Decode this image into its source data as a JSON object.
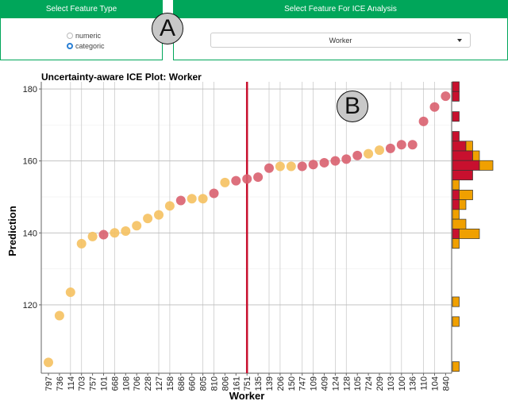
{
  "panels": {
    "feature_type": {
      "title": "Select Feature Type",
      "options": [
        "numeric",
        "categoric"
      ],
      "selected": "categoric"
    },
    "feature_select": {
      "title": "Select Feature For ICE Analysis",
      "value": "Worker"
    }
  },
  "markers": {
    "a": "A",
    "b": "B"
  },
  "colors": {
    "red": "#c8102e",
    "orange": "#f0a000",
    "point_red": "#d9606f",
    "point_orange": "#f5c160",
    "header": "#00a65a"
  },
  "chart_data": {
    "type": "scatter",
    "title": "Uncertainty-aware ICE Plot: Worker",
    "xlabel": "Worker",
    "ylabel": "Prediction",
    "ylim": [
      101,
      182
    ],
    "yticks": [
      120,
      140,
      160,
      180
    ],
    "highlight_category": "751",
    "categories": [
      "797",
      "736",
      "114",
      "703",
      "757",
      "101",
      "668",
      "108",
      "706",
      "228",
      "127",
      "158",
      "686",
      "660",
      "805",
      "810",
      "806",
      "161",
      "751",
      "135",
      "139",
      "206",
      "150",
      "747",
      "109",
      "409",
      "124",
      "128",
      "105",
      "724",
      "209",
      "103",
      "100",
      "136",
      "110",
      "104",
      "840"
    ],
    "values": [
      104,
      117,
      123.5,
      137,
      139,
      139.5,
      140,
      140.5,
      142,
      144,
      145,
      147.5,
      149,
      149.5,
      149.5,
      151,
      154,
      154.5,
      155,
      155.5,
      158,
      158.5,
      158.5,
      158.5,
      159,
      159.5,
      160,
      160.5,
      161.5,
      162,
      163,
      163.5,
      164.5,
      164.5,
      171,
      175,
      178
    ],
    "groups": [
      "o",
      "o",
      "o",
      "o",
      "o",
      "r",
      "o",
      "o",
      "o",
      "o",
      "o",
      "o",
      "r",
      "o",
      "o",
      "r",
      "o",
      "r",
      "r",
      "r",
      "r",
      "o",
      "o",
      "r",
      "r",
      "r",
      "r",
      "r",
      "r",
      "o",
      "o",
      "r",
      "r",
      "r",
      "r",
      "r",
      "r"
    ],
    "histogram": {
      "bin_width": 2.7,
      "bins": [
        {
          "from": 179.3,
          "red": 1,
          "orange": 0
        },
        {
          "from": 176.6,
          "red": 1,
          "orange": 0
        },
        {
          "from": 171.0,
          "red": 1,
          "orange": 0
        },
        {
          "from": 165.5,
          "red": 1,
          "orange": 0
        },
        {
          "from": 162.8,
          "red": 2,
          "orange": 1
        },
        {
          "from": 160.1,
          "red": 3,
          "orange": 1
        },
        {
          "from": 157.4,
          "red": 4,
          "orange": 2
        },
        {
          "from": 154.7,
          "red": 3,
          "orange": 0
        },
        {
          "from": 152.0,
          "red": 0,
          "orange": 1
        },
        {
          "from": 149.2,
          "red": 1,
          "orange": 2
        },
        {
          "from": 146.5,
          "red": 1,
          "orange": 1
        },
        {
          "from": 143.8,
          "red": 0,
          "orange": 1
        },
        {
          "from": 141.1,
          "red": 0,
          "orange": 2
        },
        {
          "from": 138.4,
          "red": 1,
          "orange": 3
        },
        {
          "from": 135.7,
          "red": 0,
          "orange": 1
        },
        {
          "from": 119.5,
          "red": 0,
          "orange": 1
        },
        {
          "from": 114.0,
          "red": 0,
          "orange": 1
        },
        {
          "from": 101.5,
          "red": 0,
          "orange": 1
        }
      ]
    }
  }
}
